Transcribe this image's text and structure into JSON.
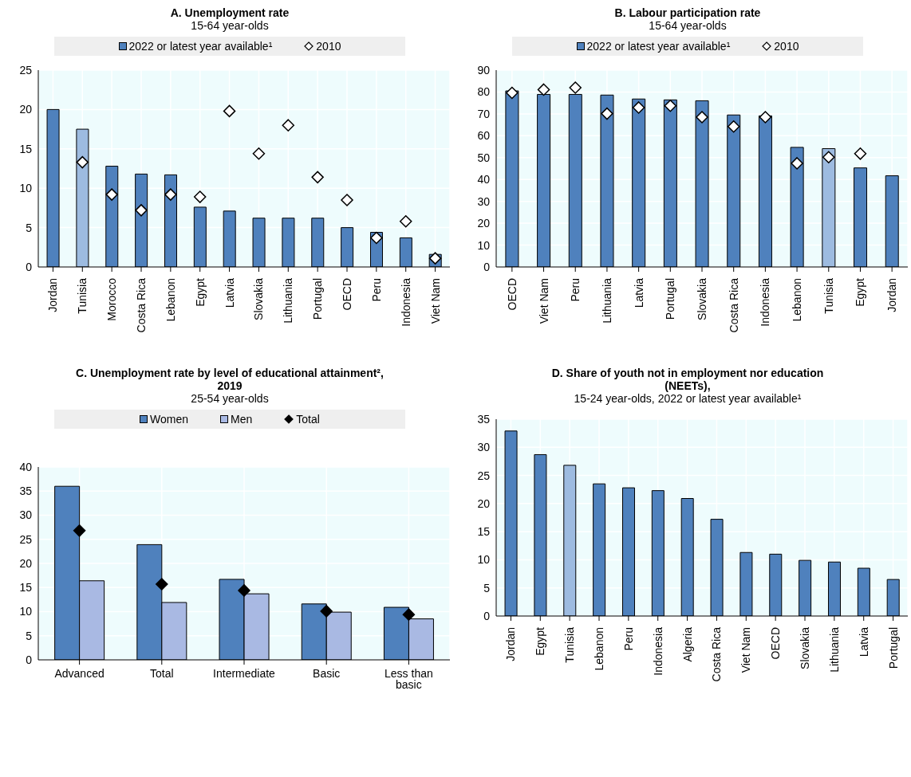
{
  "chart_data": [
    {
      "type": "bar",
      "title": "A. Unemployment rate",
      "subtitle": "15-64 year-olds",
      "categories": [
        "Jordan",
        "Tunisia",
        "Morocco",
        "Costa Rica",
        "Lebanon",
        "Egypt",
        "Latvia",
        "Slovakia",
        "Lithuania",
        "Portugal",
        "OECD",
        "Peru",
        "Indonesia",
        "Viet Nam"
      ],
      "series": [
        {
          "name": "2022 or latest year available¹",
          "color": "#4f81bd",
          "colors": [
            "#4f81bd",
            "#9dbbe0",
            "#4f81bd",
            "#4f81bd",
            "#4f81bd",
            "#4f81bd",
            "#4f81bd",
            "#4f81bd",
            "#4f81bd",
            "#4f81bd",
            "#4f81bd",
            "#4f81bd",
            "#4f81bd",
            "#4f81bd"
          ],
          "values": [
            20,
            17.5,
            12.8,
            11.8,
            11.7,
            7.6,
            7.1,
            6.2,
            6.2,
            6.2,
            5.0,
            4.4,
            3.7,
            1.6
          ]
        },
        {
          "name": "2010",
          "type": "scatter",
          "color": "#ffffff",
          "values": [
            null,
            13.3,
            9.2,
            7.2,
            9.2,
            8.9,
            19.8,
            14.4,
            18.0,
            11.4,
            8.5,
            3.7,
            5.8,
            1.1
          ]
        }
      ],
      "marker": "diamond",
      "ylim": [
        0,
        25
      ],
      "yticks": [
        0,
        5,
        10,
        15,
        20,
        25
      ],
      "grid": true,
      "legend": "top"
    },
    {
      "type": "bar",
      "title": "B. Labour participation rate",
      "subtitle": "15-64 year-olds",
      "categories": [
        "OECD",
        "Viet Nam",
        "Peru",
        "Lithuania",
        "Latvia",
        "Portugal",
        "Slovakia",
        "Costa Rica",
        "Indonesia",
        "Lebanon",
        "Tunisia",
        "Egypt",
        "Jordan"
      ],
      "series": [
        {
          "name": "2022 or latest year available¹",
          "color": "#4f81bd",
          "colors": [
            "#4f81bd",
            "#4f81bd",
            "#4f81bd",
            "#4f81bd",
            "#4f81bd",
            "#4f81bd",
            "#4f81bd",
            "#4f81bd",
            "#4f81bd",
            "#4f81bd",
            "#9dbbe0",
            "#4f81bd",
            "#4f81bd"
          ],
          "values": [
            80.5,
            78.9,
            78.9,
            78.6,
            76.8,
            76.4,
            76.0,
            69.5,
            69.1,
            54.7,
            54.1,
            45.3,
            41.7
          ]
        },
        {
          "name": "2010",
          "type": "scatter",
          "color": "#ffffff",
          "values": [
            79.6,
            81.1,
            82.0,
            70.1,
            72.9,
            73.7,
            68.5,
            64.2,
            68.5,
            47.4,
            50.2,
            51.8,
            null
          ]
        }
      ],
      "marker": "diamond",
      "ylim": [
        0,
        90
      ],
      "yticks": [
        0,
        10,
        20,
        30,
        40,
        50,
        60,
        70,
        80,
        90
      ],
      "grid": true,
      "legend": "top"
    },
    {
      "type": "bar",
      "title": "C. Unemployment rate by level of educational attainment², 2019",
      "subtitle": "25-54 year-olds",
      "categories": [
        "Advanced",
        "Total",
        "Intermediate",
        "Basic",
        "Less than basic"
      ],
      "series": [
        {
          "name": "Women",
          "color": "#4f81bd",
          "values": [
            36.0,
            23.9,
            16.7,
            11.6,
            10.9
          ]
        },
        {
          "name": "Men",
          "color": "#a9b9e3",
          "values": [
            16.4,
            11.9,
            13.7,
            9.9,
            8.5
          ]
        },
        {
          "name": "Total",
          "type": "scatter",
          "color": "#000000",
          "values": [
            26.8,
            15.7,
            14.4,
            10.1,
            9.4
          ]
        }
      ],
      "marker": "diamond",
      "ylim": [
        0,
        40
      ],
      "yticks": [
        0,
        5,
        10,
        15,
        20,
        25,
        30,
        35,
        40
      ],
      "grid": true,
      "legend": "top"
    },
    {
      "type": "bar",
      "title": "D. Share of youth not in employment nor education (NEETs),",
      "subtitle": "15-24 year-olds, 2022 or latest year available¹",
      "categories": [
        "Jordan",
        "Egypt",
        "Tunisia",
        "Lebanon",
        "Peru",
        "Indonesia",
        "Algeria",
        "Costa Rica",
        "Viet Nam",
        "OECD",
        "Slovakia",
        "Lithuania",
        "Latvia",
        "Portugal"
      ],
      "values": [
        32.9,
        28.7,
        26.8,
        23.5,
        22.8,
        22.3,
        20.9,
        17.2,
        11.3,
        11.0,
        9.9,
        9.6,
        8.5,
        6.5
      ],
      "colors": [
        "#4f81bd",
        "#4f81bd",
        "#9dbbe0",
        "#4f81bd",
        "#4f81bd",
        "#4f81bd",
        "#4f81bd",
        "#4f81bd",
        "#4f81bd",
        "#4f81bd",
        "#4f81bd",
        "#4f81bd",
        "#4f81bd",
        "#4f81bd"
      ],
      "ylim": [
        0,
        35
      ],
      "yticks": [
        0,
        5,
        10,
        15,
        20,
        25,
        30,
        35
      ],
      "grid": true
    }
  ]
}
